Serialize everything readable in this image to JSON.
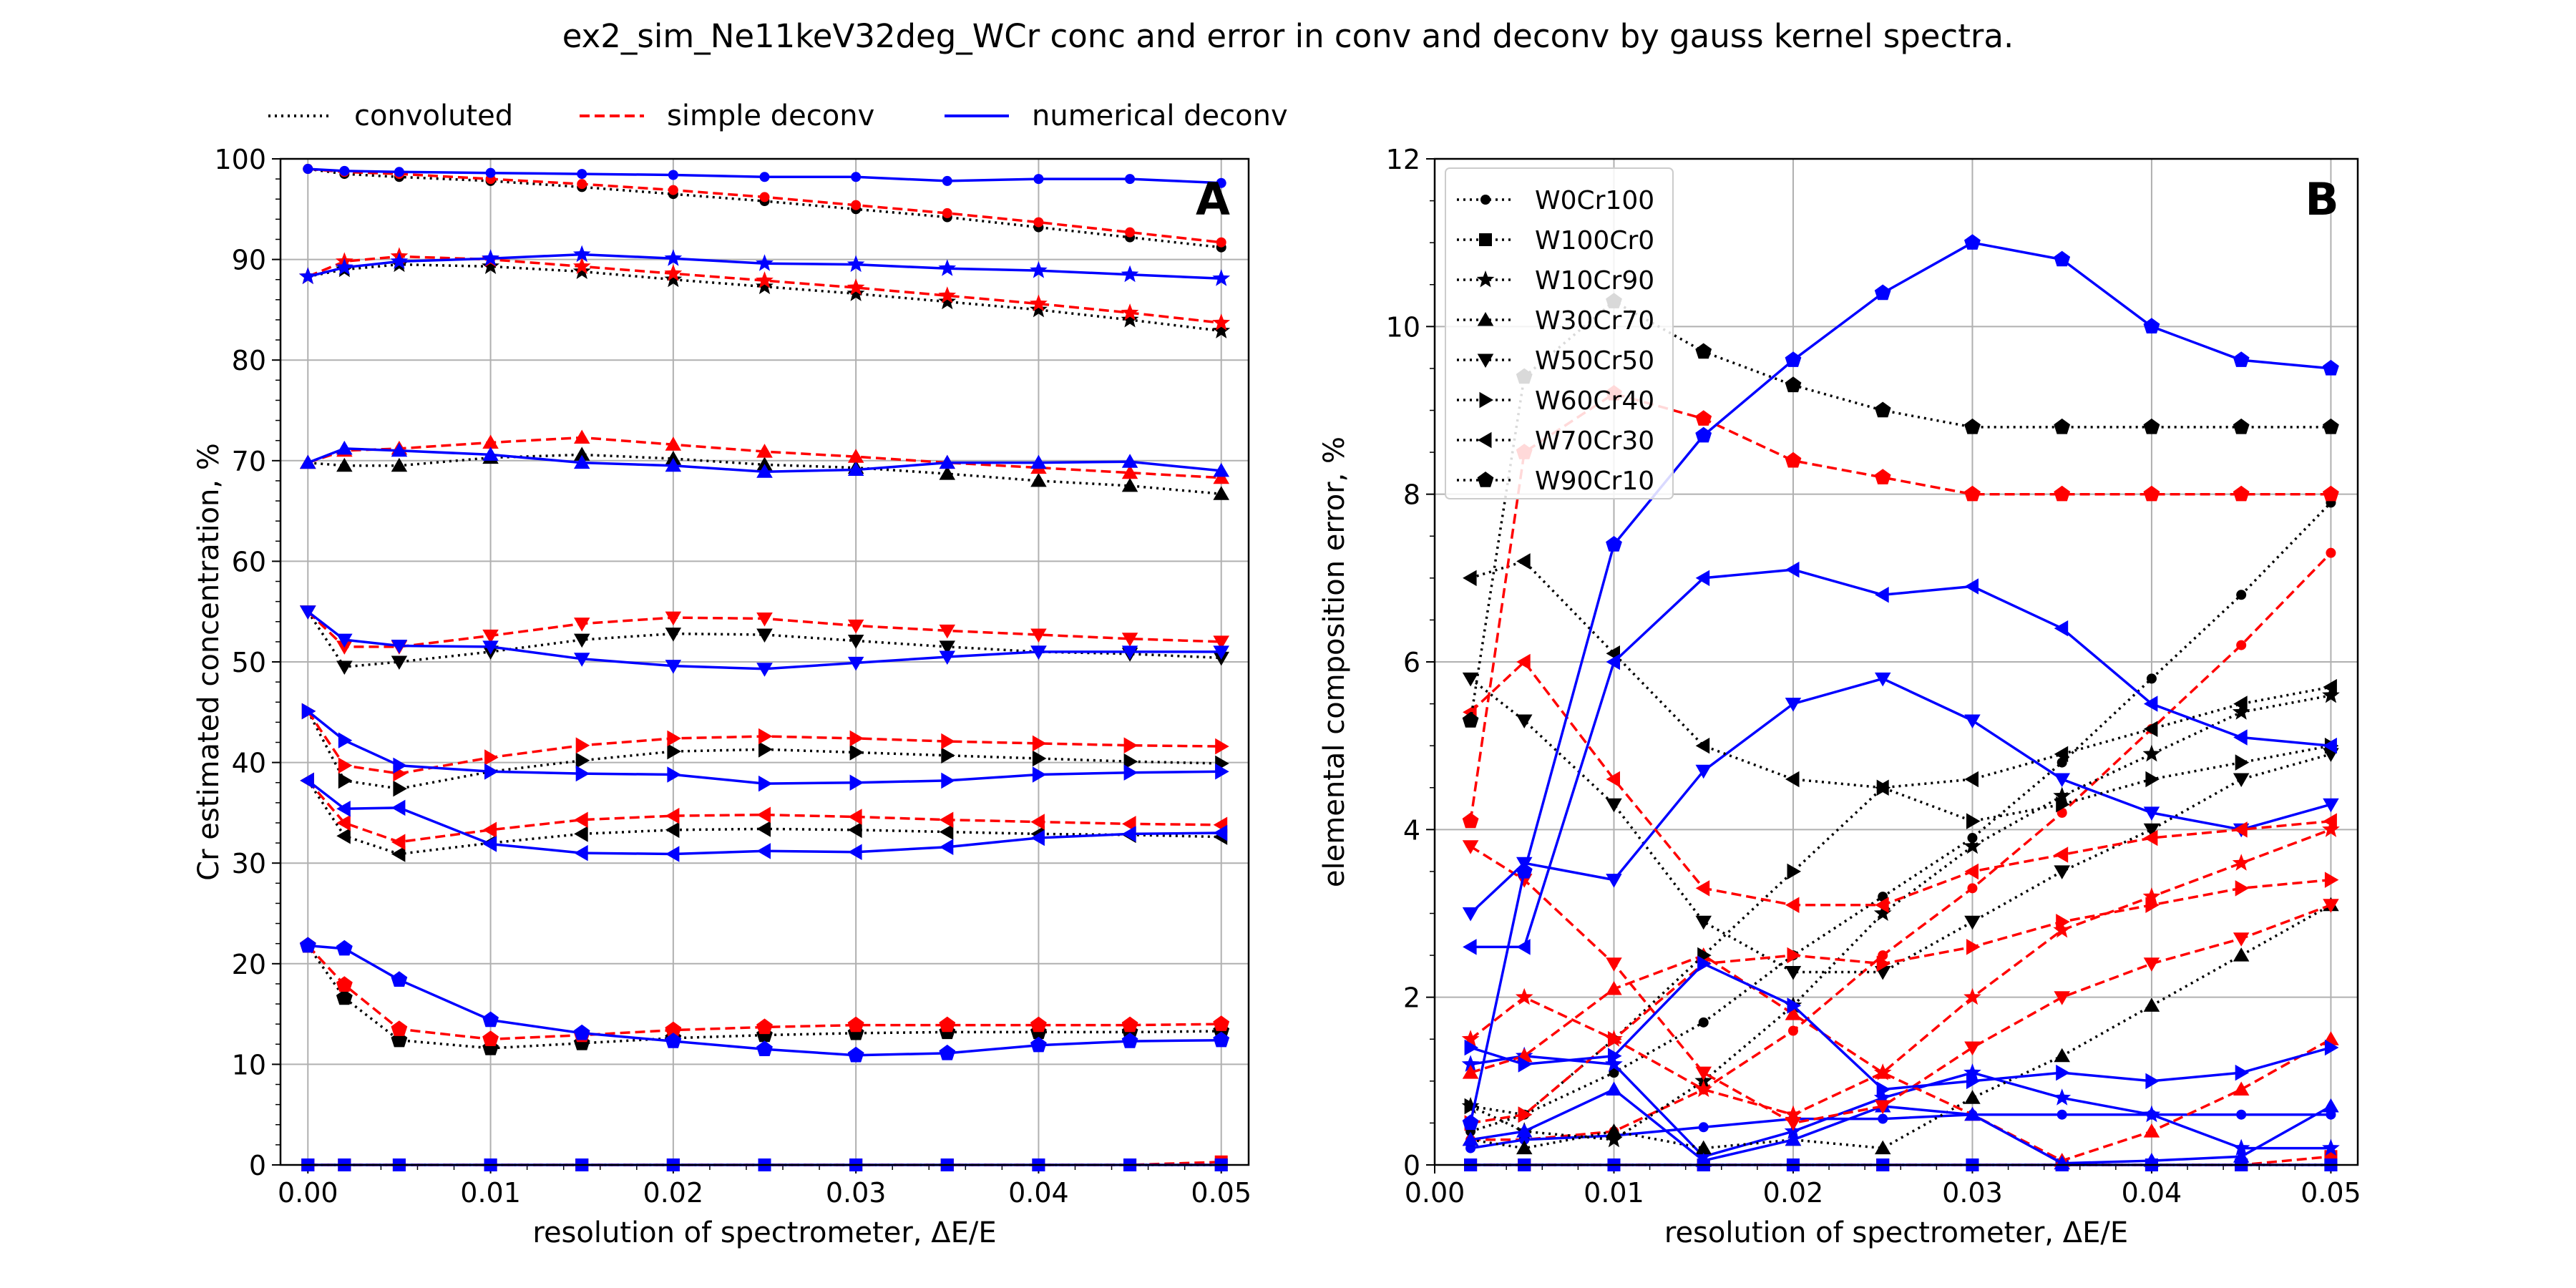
{
  "title": "ex2_sim_Ne11keV32deg_WCr conc and error in conv and deconv by gauss kernel spectra.",
  "top_legend": {
    "entries": [
      {
        "label": "convoluted",
        "color": "#000000",
        "style": "dotted"
      },
      {
        "label": "simple deconv",
        "color": "#ff0000",
        "style": "dashed"
      },
      {
        "label": "numerical deconv",
        "color": "#0000ff",
        "style": "solid"
      }
    ]
  },
  "chart_data": [
    {
      "type": "line",
      "panel_letter": "A",
      "xlabel": "resolution of spectrometer, ΔE/E",
      "ylabel": "Cr estimated concentration, %",
      "xlim": [
        -0.0015,
        0.0515
      ],
      "ylim": [
        0,
        100
      ],
      "x_ticks": [
        0.0,
        0.01,
        0.02,
        0.03,
        0.04,
        0.05
      ],
      "x_tick_labels": [
        "0.00",
        "0.01",
        "0.02",
        "0.03",
        "0.04",
        "0.05"
      ],
      "y_ticks": [
        0,
        10,
        20,
        30,
        40,
        50,
        60,
        70,
        80,
        90,
        100
      ],
      "y_tick_labels": [
        "0",
        "10",
        "20",
        "30",
        "40",
        "50",
        "60",
        "70",
        "80",
        "90",
        "100"
      ],
      "grid": true,
      "x": [
        0.0,
        0.002,
        0.005,
        0.01,
        0.015,
        0.02,
        0.025,
        0.03,
        0.035,
        0.04,
        0.045,
        0.05
      ],
      "groups": [
        {
          "marker": "circle",
          "conv": [
            99,
            98.5,
            98.2,
            97.8,
            97.2,
            96.5,
            95.8,
            95,
            94.2,
            93.2,
            92.2,
            91.2
          ],
          "simple": [
            99,
            98.7,
            98.5,
            98,
            97.5,
            96.9,
            96.2,
            95.4,
            94.6,
            93.7,
            92.7,
            91.7
          ],
          "numerical": [
            99,
            98.8,
            98.7,
            98.6,
            98.5,
            98.4,
            98.2,
            98.2,
            97.8,
            98,
            98,
            97.6
          ]
        },
        {
          "marker": "square",
          "conv": [
            0,
            0,
            0,
            0,
            0,
            0,
            0,
            0,
            0,
            0,
            0,
            0
          ],
          "simple": [
            0,
            0,
            0,
            0,
            0,
            0,
            0,
            0,
            0,
            0,
            0,
            0.3
          ],
          "numerical": [
            0,
            0,
            0,
            0,
            0,
            0,
            0,
            0,
            0,
            0,
            0,
            0
          ]
        },
        {
          "marker": "star",
          "conv": [
            88.3,
            89,
            89.5,
            89.3,
            88.8,
            88,
            87.3,
            86.6,
            85.8,
            85,
            84,
            82.9
          ],
          "simple": [
            88.3,
            89.8,
            90.3,
            90,
            89.3,
            88.6,
            87.9,
            87.2,
            86.4,
            85.6,
            84.7,
            83.7
          ],
          "numerical": [
            88.3,
            89.2,
            89.8,
            90.1,
            90.5,
            90.1,
            89.6,
            89.5,
            89.1,
            88.9,
            88.5,
            88.1
          ]
        },
        {
          "marker": "triangle-up",
          "conv": [
            69.8,
            69.5,
            69.5,
            70.3,
            70.6,
            70.2,
            69.6,
            69.3,
            68.7,
            68,
            67.5,
            66.7
          ],
          "simple": [
            69.8,
            71,
            71.2,
            71.8,
            72.3,
            71.6,
            70.9,
            70.4,
            69.8,
            69.3,
            68.8,
            68.3
          ],
          "numerical": [
            69.8,
            71.2,
            71,
            70.6,
            69.8,
            69.5,
            68.9,
            69.1,
            69.8,
            69.8,
            69.9,
            69
          ]
        },
        {
          "marker": "triangle-down",
          "conv": [
            55,
            49.5,
            50,
            51,
            52.2,
            52.8,
            52.7,
            52.1,
            51.5,
            51,
            50.8,
            50.4
          ],
          "simple": [
            55,
            51.5,
            51.5,
            52.6,
            53.8,
            54.4,
            54.3,
            53.6,
            53.1,
            52.7,
            52.3,
            52
          ],
          "numerical": [
            55,
            52.2,
            51.6,
            51.5,
            50.3,
            49.6,
            49.3,
            49.9,
            50.5,
            51,
            51,
            51
          ]
        },
        {
          "marker": "triangle-right",
          "conv": [
            45.1,
            38.2,
            37.4,
            39.1,
            40.2,
            41.1,
            41.3,
            41,
            40.7,
            40.4,
            40.1,
            39.9
          ],
          "simple": [
            45.1,
            39.7,
            38.9,
            40.5,
            41.7,
            42.4,
            42.6,
            42.4,
            42.1,
            41.9,
            41.7,
            41.6
          ],
          "numerical": [
            45.1,
            42.2,
            39.7,
            39.1,
            38.9,
            38.8,
            37.9,
            38,
            38.2,
            38.8,
            39,
            39.1
          ]
        },
        {
          "marker": "triangle-left",
          "conv": [
            38.2,
            32.7,
            30.9,
            32,
            32.9,
            33.3,
            33.4,
            33.3,
            33.1,
            32.9,
            32.8,
            32.6
          ],
          "simple": [
            38.2,
            34,
            32.1,
            33.3,
            34.3,
            34.7,
            34.8,
            34.6,
            34.3,
            34.1,
            33.9,
            33.8
          ],
          "numerical": [
            38.2,
            35.4,
            35.5,
            31.9,
            31,
            30.9,
            31.2,
            31.1,
            31.6,
            32.5,
            32.9,
            33
          ]
        },
        {
          "marker": "pentagon",
          "conv": [
            21.8,
            16.6,
            12.4,
            11.6,
            12.1,
            12.6,
            12.9,
            13.1,
            13.2,
            13.2,
            13.2,
            13.3
          ],
          "simple": [
            21.8,
            17.9,
            13.5,
            12.5,
            12.9,
            13.4,
            13.7,
            13.9,
            13.9,
            13.9,
            13.9,
            14
          ],
          "numerical": [
            21.8,
            21.5,
            18.4,
            14.4,
            13.1,
            12.3,
            11.5,
            10.9,
            11.1,
            11.9,
            12.3,
            12.4
          ]
        }
      ]
    },
    {
      "type": "line",
      "panel_letter": "B",
      "xlabel": "resolution of spectrometer, ΔE/E",
      "ylabel": "elemental composition error, %",
      "xlim": [
        0.0,
        0.0515
      ],
      "ylim": [
        0,
        12
      ],
      "x_ticks": [
        0.0,
        0.01,
        0.02,
        0.03,
        0.04,
        0.05
      ],
      "x_tick_labels": [
        "0.00",
        "0.01",
        "0.02",
        "0.03",
        "0.04",
        "0.05"
      ],
      "y_ticks": [
        0,
        2,
        4,
        6,
        8,
        10,
        12
      ],
      "y_tick_labels": [
        "0",
        "2",
        "4",
        "6",
        "8",
        "10",
        "12"
      ],
      "grid": true,
      "legend_placement": "top-left",
      "x": [
        0.002,
        0.005,
        0.01,
        0.015,
        0.02,
        0.025,
        0.03,
        0.035,
        0.04,
        0.045,
        0.05
      ],
      "series": [
        {
          "name": "W0Cr100",
          "marker": "circle",
          "conv": [
            0.4,
            0.6,
            1.1,
            1.7,
            2.5,
            3.2,
            3.9,
            4.8,
            5.8,
            6.8,
            7.9
          ],
          "simple": [
            0.3,
            0.3,
            0.4,
            0.9,
            1.6,
            2.5,
            3.3,
            4.2,
            5.2,
            6.2,
            7.3
          ],
          "numerical": [
            0.2,
            0.3,
            0.35,
            0.45,
            0.55,
            0.55,
            0.6,
            0.6,
            0.6,
            0.6,
            0.6
          ]
        },
        {
          "name": "W100Cr0",
          "marker": "square",
          "conv": [
            0,
            0,
            0,
            0,
            0,
            0,
            0,
            0,
            0,
            0,
            0
          ],
          "simple": [
            0,
            0,
            0,
            0,
            0,
            0,
            0,
            0,
            0,
            0,
            0.1
          ],
          "numerical": [
            0,
            0,
            0,
            0,
            0,
            0,
            0,
            0,
            0,
            0,
            0
          ]
        },
        {
          "name": "W10Cr90",
          "marker": "star",
          "conv": [
            0.7,
            0.4,
            0.3,
            1,
            1.9,
            3,
            3.8,
            4.4,
            4.9,
            5.4,
            5.6
          ],
          "simple": [
            1.5,
            2,
            1.5,
            0.9,
            0.6,
            1.1,
            2,
            2.8,
            3.2,
            3.6,
            4
          ],
          "numerical": [
            1.2,
            1.3,
            1.2,
            0.1,
            0.4,
            0.8,
            1.1,
            0.8,
            0.6,
            0.2,
            0.2
          ]
        },
        {
          "name": "W30Cr70",
          "marker": "triangle-up",
          "conv": [
            0.3,
            0.2,
            0.4,
            0.2,
            0.3,
            0.2,
            0.8,
            1.3,
            1.9,
            2.5,
            3.1
          ],
          "simple": [
            1.1,
            1.3,
            2.1,
            2.5,
            1.8,
            1.1,
            0.6,
            0.05,
            0.4,
            0.9,
            1.5
          ],
          "numerical": [
            0.3,
            0.4,
            0.9,
            0.05,
            0.3,
            0.7,
            0.6,
            0.02,
            0.05,
            0.1,
            0.7
          ]
        },
        {
          "name": "W50Cr50",
          "marker": "triangle-down",
          "conv": [
            5.8,
            5.3,
            4.3,
            2.9,
            2.3,
            2.3,
            2.9,
            3.5,
            4,
            4.6,
            4.9
          ],
          "simple": [
            3.8,
            3.4,
            2.4,
            1.1,
            0.5,
            0.7,
            1.4,
            2,
            2.4,
            2.7,
            3.1
          ],
          "numerical": [
            3,
            3.6,
            3.4,
            4.7,
            5.5,
            5.8,
            5.3,
            4.6,
            4.2,
            4,
            4.3
          ]
        },
        {
          "name": "W60Cr40",
          "marker": "triangle-right",
          "conv": [
            0.7,
            0.6,
            1.5,
            2.5,
            3.5,
            4.5,
            4.1,
            4.3,
            4.6,
            4.8,
            5
          ],
          "simple": [
            0.5,
            0.6,
            1.5,
            2.4,
            2.5,
            2.4,
            2.6,
            2.9,
            3.1,
            3.3,
            3.4
          ],
          "numerical": [
            1.4,
            1.2,
            1.3,
            2.4,
            1.9,
            0.9,
            1,
            1.1,
            1,
            1.1,
            1.4
          ]
        },
        {
          "name": "W70Cr30",
          "marker": "triangle-left",
          "conv": [
            7,
            7.2,
            6.1,
            5,
            4.6,
            4.5,
            4.6,
            4.9,
            5.2,
            5.5,
            5.7
          ],
          "simple": [
            5.4,
            6,
            4.6,
            3.3,
            3.1,
            3.1,
            3.5,
            3.7,
            3.9,
            4,
            4.1
          ],
          "numerical": [
            2.6,
            2.6,
            6,
            7,
            7.1,
            6.8,
            6.9,
            6.4,
            5.5,
            5.1,
            5
          ]
        },
        {
          "name": "W90Cr10",
          "marker": "pentagon",
          "conv": [
            5.3,
            9.4,
            10.3,
            9.7,
            9.3,
            9,
            8.8,
            8.8,
            8.8,
            8.8,
            8.8
          ],
          "simple": [
            4.1,
            8.5,
            9.2,
            8.9,
            8.4,
            8.2,
            8,
            8,
            8,
            8,
            8
          ],
          "numerical": [
            0.5,
            3.5,
            7.4,
            8.7,
            9.6,
            10.4,
            11,
            10.8,
            10,
            9.6,
            9.5
          ]
        }
      ]
    }
  ]
}
